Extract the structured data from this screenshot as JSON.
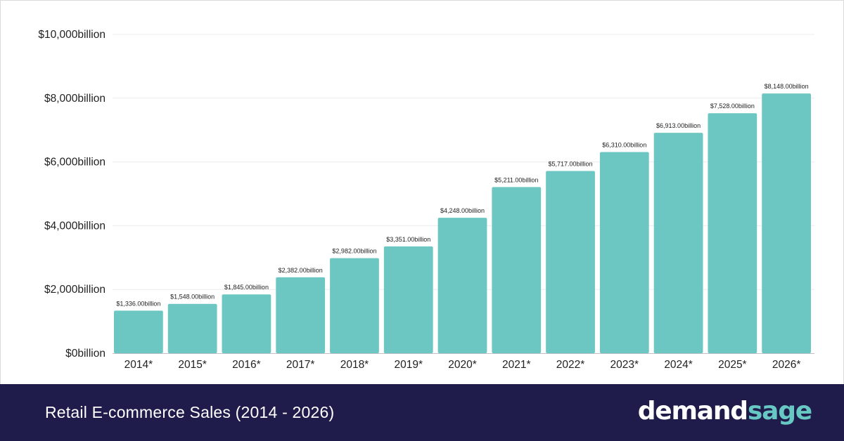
{
  "chart_data": {
    "type": "bar",
    "title": "Retail E-commerce Sales (2014 - 2026)",
    "categories": [
      "2014*",
      "2015*",
      "2016*",
      "2017*",
      "2018*",
      "2019*",
      "2020*",
      "2021*",
      "2022*",
      "2023*",
      "2024*",
      "2025*",
      "2026*"
    ],
    "values": [
      1336,
      1548,
      1845,
      2382,
      2982,
      3351,
      4248,
      5211,
      5717,
      6310,
      6913,
      7528,
      8148
    ],
    "data_labels": [
      "$1,336.00billion",
      "$1,548.00billion",
      "$1,845.00billion",
      "$2,382.00billion",
      "$2,982.00billion",
      "$3,351.00billion",
      "$4,248.00billion",
      "$5,211.00billion",
      "$5,717.00billion",
      "$6,310.00billion",
      "$6,913.00billion",
      "$7,528.00billion",
      "$8,148.00billion"
    ],
    "yticks": [
      0,
      2000,
      4000,
      6000,
      8000,
      10000
    ],
    "ytick_labels": [
      "$0billion",
      "$2,000billion",
      "$4,000billion",
      "$6,000billion",
      "$8,000billion",
      "$10,000billion"
    ],
    "ylim": [
      0,
      10000
    ],
    "grid": true,
    "bar_color": "#6cc7c3",
    "grid_color": "#ececf0"
  },
  "footer": {
    "title": "Retail E-commerce Sales (2014 - 2026)",
    "logo_part1": "demand",
    "logo_part2": "sage",
    "background": "#1f1b4b",
    "logo_accent": "#67c7c3"
  }
}
